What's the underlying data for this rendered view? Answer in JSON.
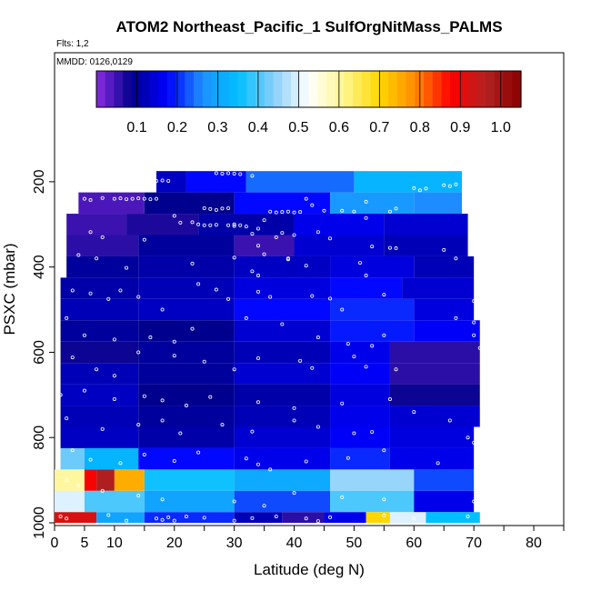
{
  "chart_data": {
    "type": "heatmap",
    "title": "ATOM2 Northeast_Pacific_1 SulfOrgNitMass_PALMS",
    "flights_label": "Flts: 1,2",
    "dates_label": "MMDD: 0126,0129",
    "xlabel": "Latitude (deg N)",
    "ylabel": "PSXC (mbar)",
    "xlim": [
      0,
      85
    ],
    "ylim": [
      1000,
      100
    ],
    "x_ticks": [
      0,
      5,
      10,
      20,
      30,
      40,
      50,
      60,
      70,
      80
    ],
    "x_minor_ticks": [
      15,
      25,
      35,
      45,
      55,
      65,
      75,
      85
    ],
    "y_ticks": [
      200,
      400,
      600,
      800,
      1000
    ],
    "colorbar": {
      "range": [
        0,
        1.05
      ],
      "ticks": [
        0.1,
        0.2,
        0.3,
        0.4,
        0.5,
        0.6,
        0.7,
        0.8,
        0.9,
        1.0
      ],
      "tick_labels": [
        "0.1",
        "0.2",
        "0.3",
        "0.4",
        "0.5",
        "0.6",
        "0.7",
        "0.8",
        "0.9",
        "1.0"
      ],
      "colors": [
        "#8a2be2",
        "#00008b",
        "#0000ff",
        "#1e90ff",
        "#00bfff",
        "#87cefa",
        "#ffffff",
        "#fff68f",
        "#ffd700",
        "#ff8c00",
        "#ff0000",
        "#b22222",
        "#8b0000"
      ]
    },
    "layers": [
      {
        "p_top": 175,
        "p_bot": 225,
        "lat_min": 17,
        "lat_max": 68,
        "segments": [
          [
            17,
            22,
            0.13
          ],
          [
            22,
            32,
            0.18
          ],
          [
            32,
            50,
            0.24
          ],
          [
            50,
            68,
            0.33
          ]
        ]
      },
      {
        "p_top": 225,
        "p_bot": 275,
        "lat_min": 4,
        "lat_max": 68,
        "segments": [
          [
            4,
            15,
            0.04
          ],
          [
            15,
            30,
            0.09
          ],
          [
            30,
            46,
            0.18
          ],
          [
            46,
            60,
            0.28
          ],
          [
            60,
            68,
            0.26
          ]
        ]
      },
      {
        "p_top": 275,
        "p_bot": 325,
        "lat_min": 2,
        "lat_max": 69,
        "segments": [
          [
            2,
            12,
            0.05
          ],
          [
            12,
            24,
            0.07
          ],
          [
            24,
            40,
            0.11
          ],
          [
            40,
            55,
            0.16
          ],
          [
            55,
            69,
            0.14
          ]
        ]
      },
      {
        "p_top": 325,
        "p_bot": 375,
        "lat_min": 2,
        "lat_max": 69,
        "segments": [
          [
            2,
            14,
            0.06
          ],
          [
            14,
            30,
            0.1
          ],
          [
            30,
            40,
            0.05
          ],
          [
            40,
            55,
            0.14
          ],
          [
            55,
            69,
            0.12
          ]
        ]
      },
      {
        "p_top": 375,
        "p_bot": 425,
        "lat_min": 2,
        "lat_max": 70,
        "segments": [
          [
            2,
            14,
            0.1
          ],
          [
            14,
            30,
            0.11
          ],
          [
            30,
            46,
            0.13
          ],
          [
            46,
            60,
            0.15
          ],
          [
            60,
            70,
            0.12
          ]
        ]
      },
      {
        "p_top": 425,
        "p_bot": 475,
        "lat_min": 1,
        "lat_max": 70,
        "segments": [
          [
            1,
            14,
            0.11
          ],
          [
            14,
            30,
            0.12
          ],
          [
            30,
            46,
            0.15
          ],
          [
            46,
            58,
            0.18
          ],
          [
            58,
            70,
            0.14
          ]
        ]
      },
      {
        "p_top": 475,
        "p_bot": 525,
        "lat_min": 1,
        "lat_max": 70,
        "segments": [
          [
            1,
            14,
            0.12
          ],
          [
            14,
            30,
            0.13
          ],
          [
            30,
            46,
            0.18
          ],
          [
            46,
            60,
            0.2
          ],
          [
            60,
            70,
            0.15
          ]
        ]
      },
      {
        "p_top": 525,
        "p_bot": 575,
        "lat_min": 1,
        "lat_max": 71,
        "segments": [
          [
            1,
            14,
            0.1
          ],
          [
            14,
            30,
            0.09
          ],
          [
            30,
            46,
            0.14
          ],
          [
            46,
            60,
            0.19
          ],
          [
            60,
            71,
            0.17
          ]
        ]
      },
      {
        "p_top": 575,
        "p_bot": 625,
        "lat_min": 1,
        "lat_max": 71,
        "segments": [
          [
            1,
            14,
            0.08
          ],
          [
            14,
            30,
            0.1
          ],
          [
            30,
            46,
            0.12
          ],
          [
            46,
            56,
            0.16
          ],
          [
            56,
            71,
            0.06
          ]
        ]
      },
      {
        "p_top": 625,
        "p_bot": 675,
        "lat_min": 1,
        "lat_max": 71,
        "segments": [
          [
            1,
            14,
            0.12
          ],
          [
            14,
            30,
            0.1
          ],
          [
            30,
            46,
            0.14
          ],
          [
            46,
            56,
            0.17
          ],
          [
            56,
            71,
            0.06
          ]
        ]
      },
      {
        "p_top": 675,
        "p_bot": 725,
        "lat_min": 1,
        "lat_max": 71,
        "segments": [
          [
            1,
            14,
            0.13
          ],
          [
            14,
            30,
            0.09
          ],
          [
            30,
            46,
            0.11
          ],
          [
            46,
            56,
            0.15
          ],
          [
            56,
            71,
            0.08
          ]
        ]
      },
      {
        "p_top": 725,
        "p_bot": 775,
        "lat_min": 1,
        "lat_max": 71,
        "segments": [
          [
            1,
            14,
            0.12
          ],
          [
            14,
            30,
            0.1
          ],
          [
            30,
            46,
            0.12
          ],
          [
            46,
            56,
            0.16
          ],
          [
            56,
            71,
            0.14
          ]
        ]
      },
      {
        "p_top": 775,
        "p_bot": 825,
        "lat_min": 1,
        "lat_max": 70,
        "segments": [
          [
            1,
            14,
            0.13
          ],
          [
            14,
            30,
            0.11
          ],
          [
            30,
            46,
            0.14
          ],
          [
            46,
            56,
            0.17
          ],
          [
            56,
            70,
            0.15
          ]
        ]
      },
      {
        "p_top": 825,
        "p_bot": 875,
        "lat_min": 1,
        "lat_max": 70,
        "segments": [
          [
            1,
            5,
            0.42
          ],
          [
            5,
            14,
            0.33
          ],
          [
            14,
            30,
            0.18
          ],
          [
            30,
            46,
            0.16
          ],
          [
            46,
            56,
            0.2
          ],
          [
            56,
            70,
            0.16
          ]
        ]
      },
      {
        "p_top": 875,
        "p_bot": 925,
        "lat_min": 0,
        "lat_max": 70,
        "segments": [
          [
            0,
            5,
            0.6
          ],
          [
            5,
            7,
            0.88
          ],
          [
            7,
            10,
            0.97
          ],
          [
            10,
            15,
            0.75
          ],
          [
            15,
            30,
            0.36
          ],
          [
            30,
            46,
            0.31
          ],
          [
            46,
            60,
            0.45
          ],
          [
            60,
            70,
            0.22
          ]
        ]
      },
      {
        "p_top": 925,
        "p_bot": 975,
        "lat_min": 0,
        "lat_max": 70,
        "segments": [
          [
            0,
            5,
            0.5
          ],
          [
            5,
            15,
            0.4
          ],
          [
            15,
            30,
            0.3
          ],
          [
            30,
            46,
            0.22
          ],
          [
            46,
            60,
            0.4
          ],
          [
            60,
            70,
            0.16
          ]
        ]
      },
      {
        "p_top": 975,
        "p_bot": 1000,
        "lat_min": 0,
        "lat_max": 71,
        "segments": [
          [
            0,
            7,
            0.92
          ],
          [
            7,
            15,
            0.3
          ],
          [
            15,
            30,
            0.2
          ],
          [
            30,
            38,
            0.12
          ],
          [
            38,
            45,
            0.06
          ],
          [
            45,
            52,
            0.16
          ],
          [
            52,
            56,
            0.7
          ],
          [
            56,
            62,
            0.5
          ],
          [
            62,
            71,
            0.35
          ]
        ]
      }
    ],
    "points": [
      [
        17,
        198
      ],
      [
        18,
        197
      ],
      [
        19,
        198
      ],
      [
        27,
        180
      ],
      [
        28,
        181
      ],
      [
        29,
        180
      ],
      [
        30,
        181
      ],
      [
        31,
        182
      ],
      [
        33,
        186
      ],
      [
        60,
        215
      ],
      [
        61,
        220
      ],
      [
        62,
        216
      ],
      [
        65,
        208
      ],
      [
        66,
        210
      ],
      [
        67,
        206
      ],
      [
        8,
        238
      ],
      [
        10,
        240
      ],
      [
        11,
        239
      ],
      [
        12,
        241
      ],
      [
        13,
        240
      ],
      [
        14,
        239
      ],
      [
        15,
        240
      ],
      [
        16,
        241
      ],
      [
        17,
        240
      ],
      [
        5,
        240
      ],
      [
        6,
        243
      ],
      [
        25,
        262
      ],
      [
        26,
        264
      ],
      [
        27,
        266
      ],
      [
        28,
        263
      ],
      [
        29,
        262
      ],
      [
        36,
        270
      ],
      [
        37,
        272
      ],
      [
        38,
        271
      ],
      [
        39,
        270
      ],
      [
        40,
        272
      ],
      [
        41,
        271
      ],
      [
        42,
        240
      ],
      [
        43,
        255
      ],
      [
        45,
        268
      ],
      [
        48,
        268
      ],
      [
        52,
        247
      ],
      [
        56,
        270
      ],
      [
        57,
        263
      ],
      [
        20,
        280
      ],
      [
        21,
        296
      ],
      [
        23,
        295
      ],
      [
        25,
        302
      ],
      [
        30,
        300
      ],
      [
        31,
        302
      ],
      [
        32,
        305
      ],
      [
        33,
        322
      ],
      [
        34,
        310
      ],
      [
        35,
        290
      ],
      [
        38,
        320
      ],
      [
        40,
        325
      ],
      [
        44,
        318
      ],
      [
        50,
        270
      ],
      [
        52,
        285
      ],
      [
        6,
        318
      ],
      [
        8,
        330
      ],
      [
        15,
        336
      ],
      [
        24,
        300
      ],
      [
        26,
        302
      ],
      [
        27,
        301
      ],
      [
        29,
        302
      ],
      [
        30,
        304
      ],
      [
        34,
        350
      ],
      [
        35,
        370
      ],
      [
        37,
        330
      ],
      [
        39,
        380
      ],
      [
        46,
        333
      ],
      [
        53,
        352
      ],
      [
        56,
        355
      ],
      [
        57,
        356
      ],
      [
        4,
        372
      ],
      [
        7,
        380
      ],
      [
        12,
        402
      ],
      [
        23,
        392
      ],
      [
        30,
        378
      ],
      [
        33,
        410
      ],
      [
        34,
        420
      ],
      [
        39,
        382
      ],
      [
        42,
        397
      ],
      [
        51,
        390
      ],
      [
        52,
        420
      ],
      [
        65,
        360
      ],
      [
        67,
        380
      ],
      [
        3,
        455
      ],
      [
        6,
        462
      ],
      [
        9,
        475
      ],
      [
        11,
        455
      ],
      [
        14,
        470
      ],
      [
        18,
        500
      ],
      [
        24,
        440
      ],
      [
        27,
        453
      ],
      [
        29,
        475
      ],
      [
        34,
        458
      ],
      [
        36,
        470
      ],
      [
        43,
        468
      ],
      [
        46,
        474
      ],
      [
        48,
        500
      ],
      [
        55,
        465
      ],
      [
        70,
        480
      ],
      [
        70,
        530
      ],
      [
        2,
        520
      ],
      [
        5,
        560
      ],
      [
        10,
        570
      ],
      [
        16,
        565
      ],
      [
        20,
        575
      ],
      [
        23,
        545
      ],
      [
        32,
        520
      ],
      [
        38,
        534
      ],
      [
        44,
        565
      ],
      [
        49,
        580
      ],
      [
        53,
        585
      ],
      [
        55,
        560
      ],
      [
        67,
        520
      ],
      [
        70,
        560
      ],
      [
        71,
        590
      ],
      [
        3,
        612
      ],
      [
        7,
        640
      ],
      [
        10,
        655
      ],
      [
        14,
        600
      ],
      [
        20,
        608
      ],
      [
        25,
        622
      ],
      [
        30,
        640
      ],
      [
        34,
        614
      ],
      [
        41,
        620
      ],
      [
        43,
        637
      ],
      [
        50,
        610
      ],
      [
        52,
        634
      ],
      [
        57,
        640
      ],
      [
        1,
        700
      ],
      [
        5,
        690
      ],
      [
        10,
        710
      ],
      [
        15,
        703
      ],
      [
        18,
        713
      ],
      [
        22,
        725
      ],
      [
        26,
        705
      ],
      [
        34,
        717
      ],
      [
        40,
        731
      ],
      [
        48,
        720
      ],
      [
        56,
        710
      ],
      [
        60,
        740
      ],
      [
        2,
        755
      ],
      [
        8,
        780
      ],
      [
        14,
        770
      ],
      [
        18,
        760
      ],
      [
        21,
        790
      ],
      [
        28,
        770
      ],
      [
        33,
        786
      ],
      [
        40,
        760
      ],
      [
        44,
        775
      ],
      [
        50,
        790
      ],
      [
        53,
        787
      ],
      [
        66,
        760
      ],
      [
        69,
        800
      ],
      [
        70,
        812
      ],
      [
        3,
        830
      ],
      [
        6,
        852
      ],
      [
        11,
        860
      ],
      [
        15,
        840
      ],
      [
        20,
        855
      ],
      [
        24,
        835
      ],
      [
        32,
        849
      ],
      [
        34,
        863
      ],
      [
        36,
        875
      ],
      [
        42,
        856
      ],
      [
        49,
        848
      ],
      [
        55,
        830
      ],
      [
        64,
        860
      ],
      [
        2,
        900
      ],
      [
        4,
        912
      ],
      [
        8,
        925
      ],
      [
        14,
        936
      ],
      [
        18,
        945
      ],
      [
        30,
        950
      ],
      [
        35,
        960
      ],
      [
        40,
        930
      ],
      [
        48,
        940
      ],
      [
        55,
        945
      ],
      [
        70,
        950
      ],
      [
        71,
        920
      ],
      [
        1,
        985
      ],
      [
        2,
        990
      ],
      [
        9,
        982
      ],
      [
        12,
        995
      ],
      [
        17,
        990
      ],
      [
        18,
        993
      ],
      [
        19,
        987
      ],
      [
        20,
        995
      ],
      [
        22,
        985
      ],
      [
        25,
        988
      ],
      [
        30,
        995
      ],
      [
        33,
        989
      ],
      [
        37,
        985
      ],
      [
        42,
        990
      ],
      [
        44,
        996
      ],
      [
        46,
        987
      ],
      [
        55,
        983
      ],
      [
        60,
        990
      ],
      [
        69,
        985
      ]
    ]
  }
}
